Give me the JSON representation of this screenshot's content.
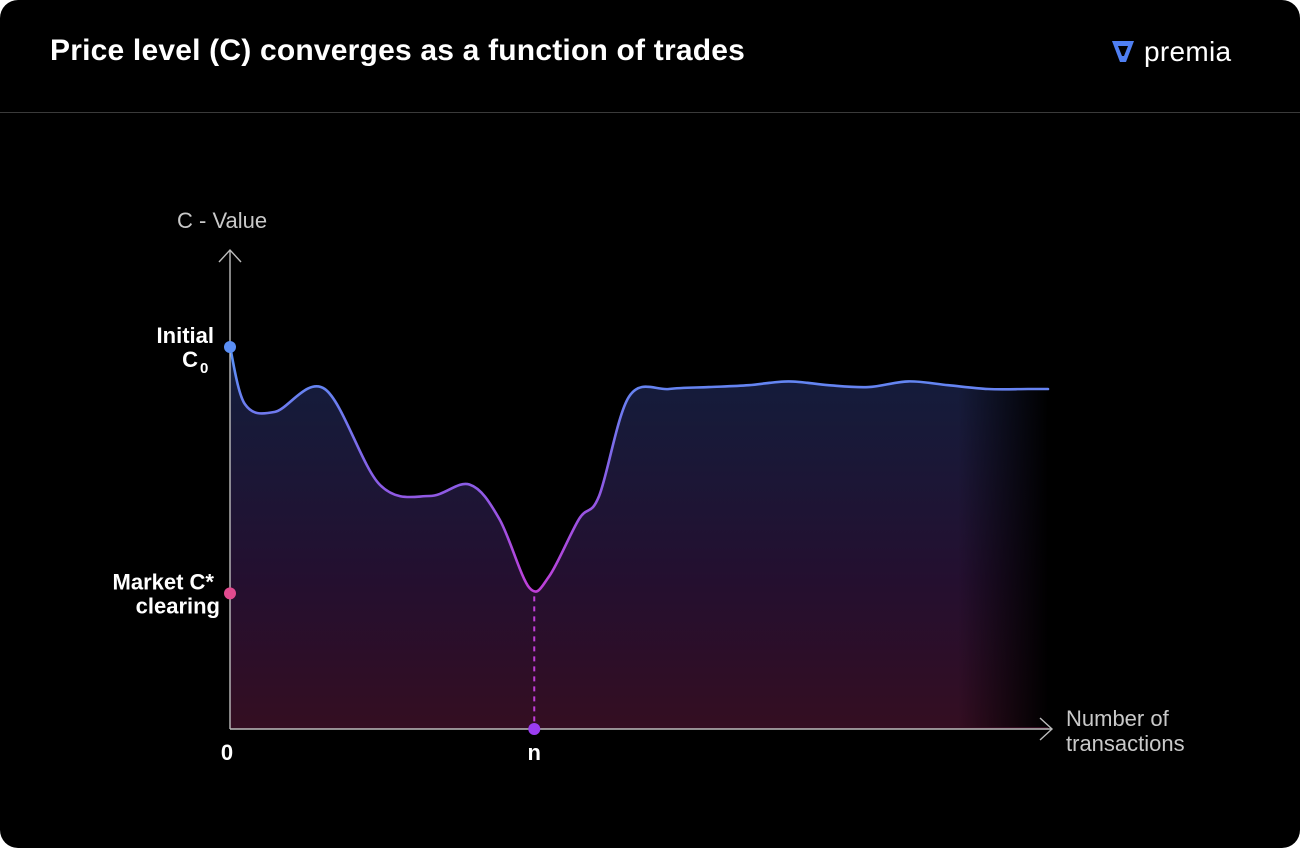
{
  "header": {
    "title": "Price level (C) converges as a function of trades",
    "brand": "premia",
    "brand_icon": "premia-logo-icon"
  },
  "colors": {
    "background": "#000000",
    "line_start": "#5b8ff5",
    "line_dip": "#c03ed8",
    "initial_marker": "#5b8ff5",
    "clearing_marker": "#e24a8f",
    "n_marker": "#9b3df0",
    "axis": "#bdbdbd"
  },
  "chart_data": {
    "type": "area",
    "title": "Price level (C) converges as a function of trades",
    "xlabel_line1": "Number of",
    "xlabel_line2": "transactions",
    "ylabel": "C - Value",
    "x_ticks": [
      {
        "label": "0",
        "x": 0
      },
      {
        "label": "n",
        "x": 30.5
      }
    ],
    "y_markers": [
      {
        "line1": "Initial",
        "line2": "C",
        "sub": "0",
        "y": 100
      },
      {
        "line1": "Market C*",
        "line2": "clearing",
        "sub": "",
        "y": 35.5
      }
    ],
    "xlim": [
      0,
      82
    ],
    "ylim": [
      0,
      100
    ],
    "series": [
      {
        "points": [
          [
            0,
            100
          ],
          [
            1.5,
            85
          ],
          [
            4.5,
            83
          ],
          [
            9.5,
            89
          ],
          [
            15,
            64
          ],
          [
            20,
            61
          ],
          [
            24,
            64
          ],
          [
            27,
            55
          ],
          [
            30,
            37
          ],
          [
            32,
            40
          ],
          [
            35,
            55
          ],
          [
            37,
            61
          ],
          [
            40,
            87
          ],
          [
            44,
            89
          ],
          [
            48,
            89.5
          ],
          [
            52,
            90
          ],
          [
            56,
            91
          ],
          [
            60,
            90
          ],
          [
            64,
            89.5
          ],
          [
            68,
            91
          ],
          [
            72,
            90
          ],
          [
            76,
            89
          ],
          [
            80,
            89
          ],
          [
            82,
            89
          ]
        ]
      }
    ]
  }
}
